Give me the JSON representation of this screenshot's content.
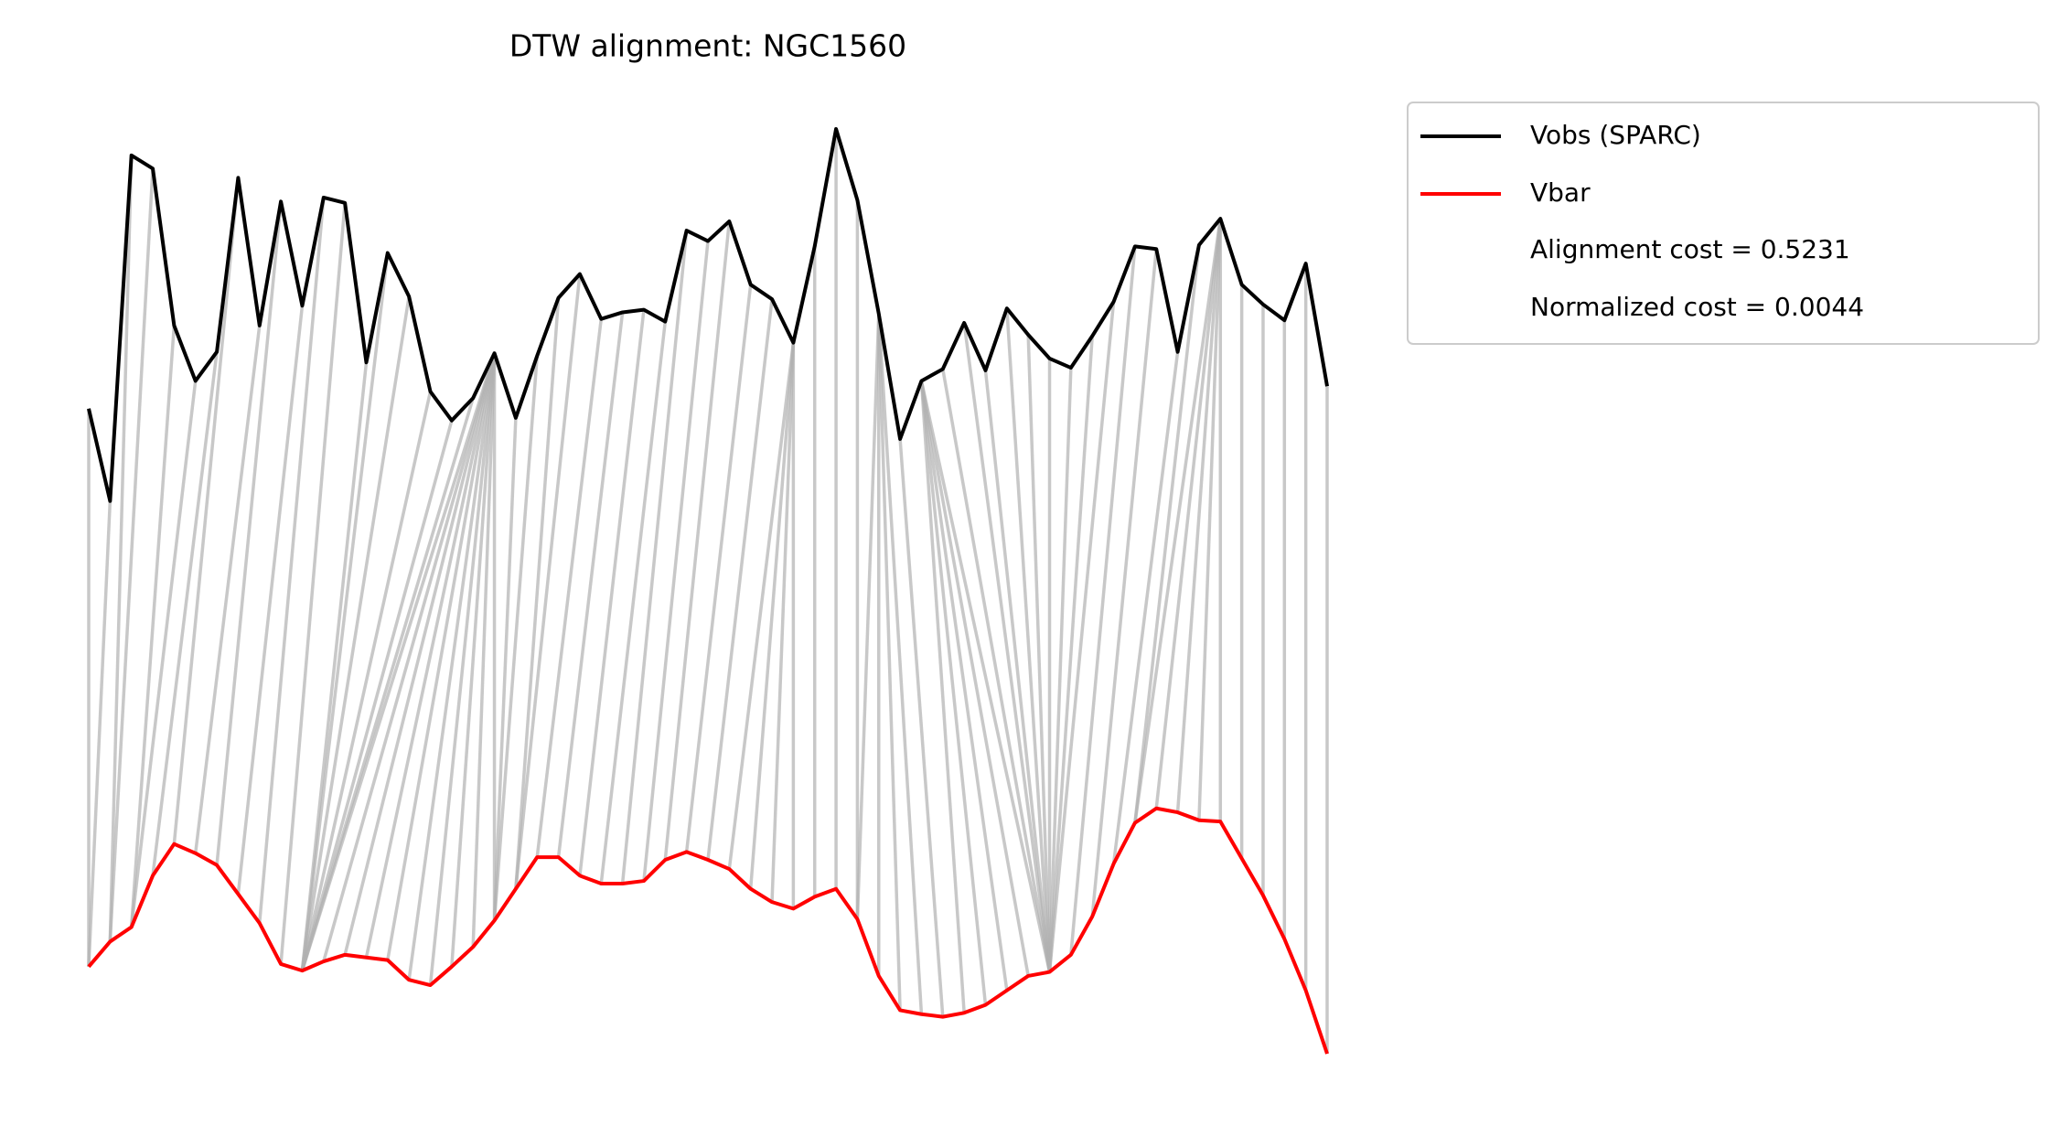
{
  "chart_data": {
    "type": "dtw",
    "title": "DTW alignment: NGC1560",
    "series": [
      {
        "name": "Vobs (SPARC)",
        "color": "#000000",
        "values": [
          540,
          470,
          732,
          722,
          603,
          561,
          583,
          715,
          603,
          697,
          618,
          700,
          696,
          575,
          658,
          625,
          553,
          531,
          548,
          582,
          533,
          580,
          624,
          642,
          608,
          613,
          615,
          606,
          675,
          667,
          682,
          634,
          623,
          590,
          663,
          752,
          698,
          612,
          517,
          561,
          570,
          605,
          569,
          616,
          596,
          578,
          571,
          595,
          621,
          663,
          661,
          583,
          664,
          684,
          634,
          619,
          607,
          650,
          557
        ]
      },
      {
        "name": "Vbar",
        "color": "#ff0000",
        "values": [
          117,
          136,
          147,
          186,
          210,
          203,
          194,
          172,
          150,
          119,
          114,
          121,
          126,
          124,
          122,
          107,
          103,
          117,
          132,
          152,
          176,
          200,
          200,
          186,
          180,
          180,
          182,
          198,
          204,
          198,
          191,
          176,
          166,
          161,
          170,
          176,
          153,
          110,
          84,
          81,
          79,
          82,
          88,
          99,
          110,
          113,
          126,
          155,
          195,
          226,
          237,
          234,
          228,
          227,
          199,
          171,
          138,
          99,
          51
        ]
      }
    ],
    "legend_notes": [
      "Alignment cost = 0.5231",
      "Normalized cost = 0.0044"
    ],
    "connector_color": "#b0b0b0",
    "alignment": [
      [
        0,
        0
      ],
      [
        1,
        0
      ],
      [
        2,
        1
      ],
      [
        3,
        1
      ],
      [
        4,
        2
      ],
      [
        5,
        2
      ],
      [
        6,
        3
      ],
      [
        7,
        4
      ],
      [
        8,
        5
      ],
      [
        9,
        6
      ],
      [
        10,
        7
      ],
      [
        11,
        8
      ],
      [
        12,
        9
      ],
      [
        13,
        10
      ],
      [
        14,
        10
      ],
      [
        15,
        10
      ],
      [
        16,
        10
      ],
      [
        17,
        10
      ],
      [
        18,
        10
      ],
      [
        19,
        10
      ],
      [
        19,
        11
      ],
      [
        19,
        12
      ],
      [
        19,
        13
      ],
      [
        19,
        14
      ],
      [
        19,
        15
      ],
      [
        19,
        16
      ],
      [
        19,
        17
      ],
      [
        19,
        18
      ],
      [
        19,
        19
      ],
      [
        20,
        19
      ],
      [
        21,
        19
      ],
      [
        22,
        20
      ],
      [
        23,
        20
      ],
      [
        24,
        21
      ],
      [
        25,
        22
      ],
      [
        26,
        23
      ],
      [
        27,
        24
      ],
      [
        28,
        25
      ],
      [
        29,
        26
      ],
      [
        30,
        27
      ],
      [
        31,
        28
      ],
      [
        32,
        29
      ],
      [
        33,
        30
      ],
      [
        33,
        31
      ],
      [
        33,
        32
      ],
      [
        33,
        33
      ],
      [
        34,
        34
      ],
      [
        35,
        35
      ],
      [
        36,
        36
      ],
      [
        37,
        36
      ],
      [
        37,
        37
      ],
      [
        37,
        38
      ],
      [
        37,
        39
      ],
      [
        38,
        40
      ],
      [
        39,
        41
      ],
      [
        39,
        42
      ],
      [
        39,
        43
      ],
      [
        39,
        44
      ],
      [
        39,
        45
      ],
      [
        40,
        45
      ],
      [
        41,
        45
      ],
      [
        42,
        45
      ],
      [
        43,
        45
      ],
      [
        44,
        45
      ],
      [
        45,
        45
      ],
      [
        46,
        45
      ],
      [
        47,
        45
      ],
      [
        48,
        45
      ],
      [
        49,
        46
      ],
      [
        50,
        47
      ],
      [
        51,
        48
      ],
      [
        52,
        49
      ],
      [
        53,
        49
      ],
      [
        53,
        50
      ],
      [
        53,
        51
      ],
      [
        53,
        52
      ],
      [
        53,
        53
      ],
      [
        54,
        54
      ],
      [
        55,
        55
      ],
      [
        56,
        56
      ],
      [
        57,
        57
      ],
      [
        58,
        58
      ]
    ]
  }
}
